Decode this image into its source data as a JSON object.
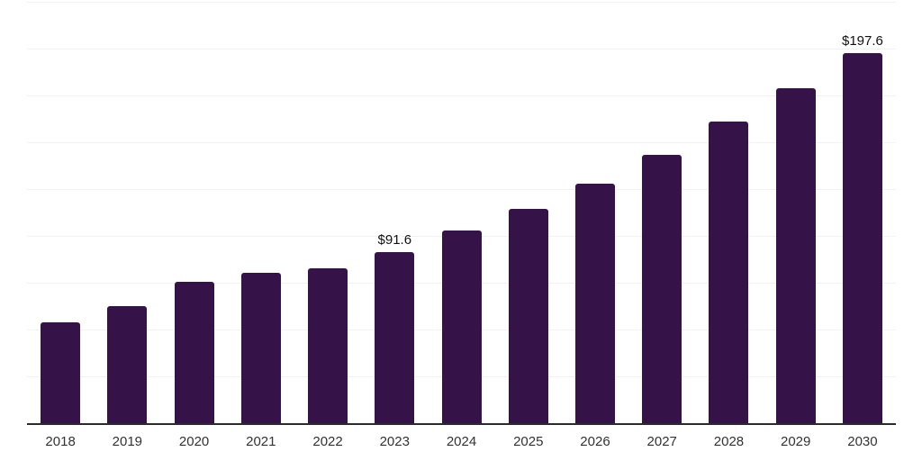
{
  "chart_data": {
    "type": "bar",
    "title": "",
    "xlabel": "",
    "ylabel": "",
    "categories": [
      "2018",
      "2019",
      "2020",
      "2021",
      "2022",
      "2023",
      "2024",
      "2025",
      "2026",
      "2027",
      "2028",
      "2029",
      "2030"
    ],
    "values": [
      54.0,
      62.5,
      75.3,
      80.4,
      82.8,
      91.6,
      102.9,
      114.6,
      127.9,
      143.1,
      160.9,
      178.9,
      197.6
    ],
    "data_labels": [
      {
        "category": "2023",
        "text": "$91.6"
      },
      {
        "category": "2030",
        "text": "$197.6"
      }
    ],
    "ylim": [
      0,
      225
    ],
    "gridline_interval": 25,
    "gridline_count": 9,
    "legend": "none",
    "grid": "horizontal",
    "colors": {
      "bar": "#351349",
      "gridline": "#f2f2f2",
      "axis_line": "#2b2b2b",
      "data_label_text": "#111111",
      "tick_label_text": "#333333",
      "background": "#ffffff"
    }
  }
}
